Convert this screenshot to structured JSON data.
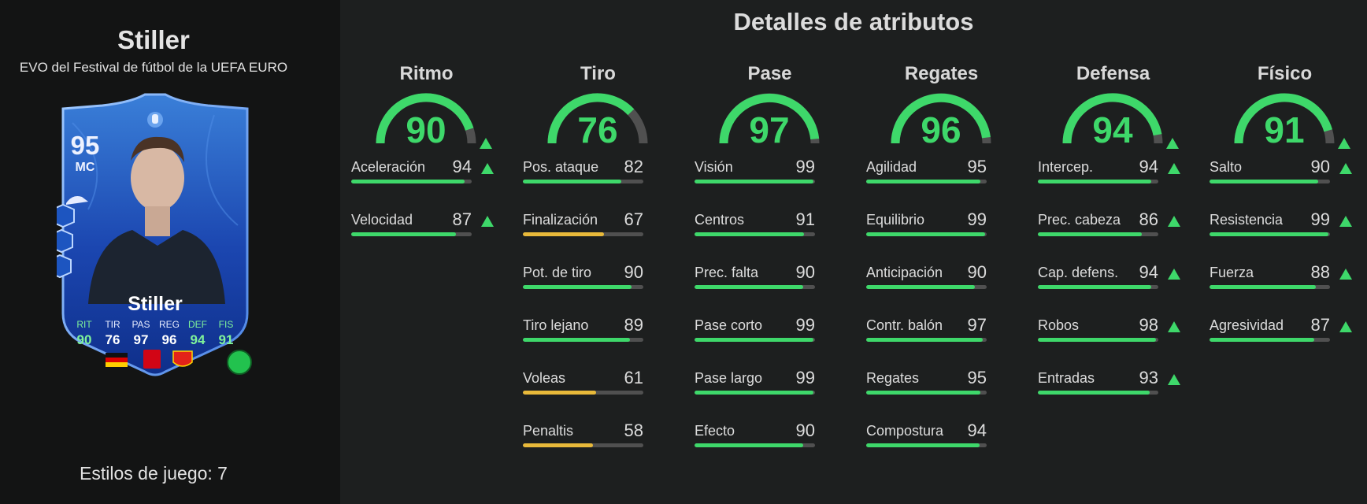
{
  "player": {
    "name": "Stiller",
    "card_type": "EVO del Festival de fútbol de la UEFA EURO",
    "playstyles": "Estilos de juego: 7"
  },
  "card": {
    "rating": "95",
    "position": "MC",
    "name": "Stiller",
    "stats": [
      {
        "label": "RIT",
        "value": "90",
        "highlight": true
      },
      {
        "label": "TIR",
        "value": "76",
        "highlight": false
      },
      {
        "label": "PAS",
        "value": "97",
        "highlight": false
      },
      {
        "label": "REG",
        "value": "96",
        "highlight": false
      },
      {
        "label": "DEF",
        "value": "94",
        "highlight": true
      },
      {
        "label": "FIS",
        "value": "91",
        "highlight": true
      }
    ]
  },
  "page_title": "Detalles de atributos",
  "colors": {
    "green": "#3ed86a",
    "yellow": "#e8b93a",
    "track": "#505050"
  },
  "categories": [
    {
      "name": "Ritmo",
      "value": 90,
      "upgraded": true,
      "stats": [
        {
          "label": "Aceleración",
          "value": 94,
          "upgraded": true
        },
        {
          "label": "Velocidad",
          "value": 87,
          "upgraded": true
        }
      ]
    },
    {
      "name": "Tiro",
      "value": 76,
      "upgraded": false,
      "stats": [
        {
          "label": "Pos. ataque",
          "value": 82,
          "upgraded": false
        },
        {
          "label": "Finalización",
          "value": 67,
          "upgraded": false
        },
        {
          "label": "Pot. de tiro",
          "value": 90,
          "upgraded": false
        },
        {
          "label": "Tiro lejano",
          "value": 89,
          "upgraded": false
        },
        {
          "label": "Voleas",
          "value": 61,
          "upgraded": false
        },
        {
          "label": "Penaltis",
          "value": 58,
          "upgraded": false
        }
      ]
    },
    {
      "name": "Pase",
      "value": 97,
      "upgraded": false,
      "stats": [
        {
          "label": "Visión",
          "value": 99,
          "upgraded": false
        },
        {
          "label": "Centros",
          "value": 91,
          "upgraded": false
        },
        {
          "label": "Prec. falta",
          "value": 90,
          "upgraded": false
        },
        {
          "label": "Pase corto",
          "value": 99,
          "upgraded": false
        },
        {
          "label": "Pase largo",
          "value": 99,
          "upgraded": false
        },
        {
          "label": "Efecto",
          "value": 90,
          "upgraded": false
        }
      ]
    },
    {
      "name": "Regates",
      "value": 96,
      "upgraded": false,
      "stats": [
        {
          "label": "Agilidad",
          "value": 95,
          "upgraded": false
        },
        {
          "label": "Equilibrio",
          "value": 99,
          "upgraded": false
        },
        {
          "label": "Anticipación",
          "value": 90,
          "upgraded": false
        },
        {
          "label": "Contr. balón",
          "value": 97,
          "upgraded": false
        },
        {
          "label": "Regates",
          "value": 95,
          "upgraded": false
        },
        {
          "label": "Compostura",
          "value": 94,
          "upgraded": false
        }
      ]
    },
    {
      "name": "Defensa",
      "value": 94,
      "upgraded": true,
      "stats": [
        {
          "label": "Intercep.",
          "value": 94,
          "upgraded": true
        },
        {
          "label": "Prec. cabeza",
          "value": 86,
          "upgraded": true
        },
        {
          "label": "Cap. defens.",
          "value": 94,
          "upgraded": true
        },
        {
          "label": "Robos",
          "value": 98,
          "upgraded": true
        },
        {
          "label": "Entradas",
          "value": 93,
          "upgraded": true
        }
      ]
    },
    {
      "name": "Físico",
      "value": 91,
      "upgraded": true,
      "stats": [
        {
          "label": "Salto",
          "value": 90,
          "upgraded": true
        },
        {
          "label": "Resistencia",
          "value": 99,
          "upgraded": true
        },
        {
          "label": "Fuerza",
          "value": 88,
          "upgraded": true
        },
        {
          "label": "Agresividad",
          "value": 87,
          "upgraded": true
        }
      ]
    }
  ]
}
